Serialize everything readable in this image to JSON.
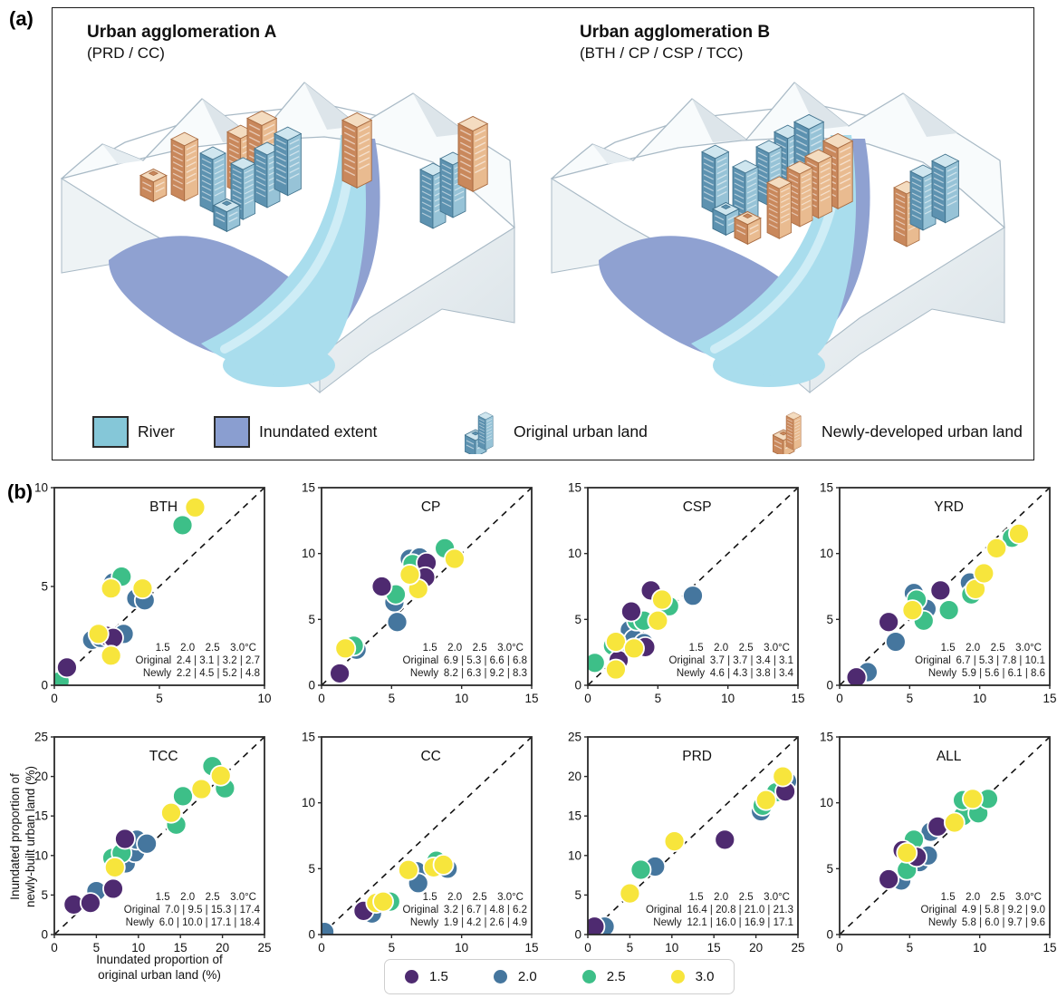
{
  "panel_a": {
    "label": "(a)",
    "scene_a": {
      "title": "Urban agglomeration A",
      "subtitle": "(PRD / CC)"
    },
    "scene_b": {
      "title": "Urban agglomeration B",
      "subtitle": "(BTH / CP / CSP / TCC)"
    },
    "legend": {
      "river": "River",
      "inundated": "Inundated extent",
      "original": "Original urban land",
      "newly": "Newly-developed urban land"
    },
    "colors": {
      "river": "#85c7d8",
      "inundated": "#8a9ed0",
      "original_building": "#7fb3cc",
      "newly_building": "#e0a97e"
    }
  },
  "panel_b": {
    "label": "(b)",
    "xlabel_line1": "Inundated proportion of",
    "xlabel_line2": "original urban land (%)",
    "ylabel_line1": "Inundated proportion of",
    "ylabel_line2": "newly-built urban land (%)",
    "legend": [
      {
        "label": "1.5",
        "color": "#4e2a70"
      },
      {
        "label": "2.0",
        "color": "#45769e"
      },
      {
        "label": "2.5",
        "color": "#3dbf88"
      },
      {
        "label": "3.0",
        "color": "#f7e53c"
      }
    ]
  },
  "chart_data": [
    {
      "type": "scatter",
      "title": "BTH",
      "xlim": [
        0,
        10
      ],
      "ylim": [
        0,
        10
      ],
      "ticks": [
        0,
        5,
        10
      ],
      "stats": {
        "col_header": [
          "1.5",
          "2.0",
          "2.5",
          "3.0°C"
        ],
        "rows": [
          {
            "label": "Original",
            "values": "2.4 | 3.1 | 3.2 | 2.7"
          },
          {
            "label": "Newly",
            "values": "2.2 | 4.5 | 5.2 | 4.8"
          }
        ]
      },
      "series": [
        {
          "name": "2.0",
          "points": [
            [
              1.8,
              2.3
            ],
            [
              2.2,
              2.4
            ],
            [
              3.3,
              2.6
            ],
            [
              2.8,
              5.2
            ],
            [
              3.9,
              4.4
            ],
            [
              4.3,
              4.3
            ]
          ]
        },
        {
          "name": "2.5",
          "points": [
            [
              0.25,
              0.2
            ],
            [
              3.2,
              5.5
            ],
            [
              6.1,
              8.1
            ]
          ]
        },
        {
          "name": "1.5",
          "points": [
            [
              0.6,
              0.9
            ],
            [
              2.5,
              2.5
            ],
            [
              2.8,
              2.4
            ]
          ]
        },
        {
          "name": "3.0",
          "points": [
            [
              2.1,
              2.6
            ],
            [
              2.7,
              1.5
            ],
            [
              2.7,
              4.9
            ],
            [
              4.2,
              4.9
            ],
            [
              6.7,
              9.0
            ]
          ]
        }
      ]
    },
    {
      "type": "scatter",
      "title": "CP",
      "xlim": [
        0,
        15
      ],
      "ylim": [
        0,
        15
      ],
      "ticks": [
        0,
        5,
        10,
        15
      ],
      "stats": {
        "col_header": [
          "1.5",
          "2.0",
          "2.5",
          "3.0°C"
        ],
        "rows": [
          {
            "label": "Original",
            "values": "6.9 | 5.3 | 6.6 | 6.8"
          },
          {
            "label": "Newly",
            "values": "8.2 | 6.3 | 9.2 | 8.3"
          }
        ]
      },
      "series": [
        {
          "name": "2.0",
          "points": [
            [
              2.5,
              2.7
            ],
            [
              5.2,
              6.3
            ],
            [
              5.4,
              4.8
            ],
            [
              6.3,
              9.6
            ],
            [
              7.0,
              9.7
            ]
          ]
        },
        {
          "name": "2.5",
          "points": [
            [
              2.3,
              3.0
            ],
            [
              5.3,
              6.9
            ],
            [
              6.5,
              9.2
            ],
            [
              8.8,
              10.4
            ]
          ]
        },
        {
          "name": "1.5",
          "points": [
            [
              1.3,
              0.9
            ],
            [
              4.3,
              7.5
            ],
            [
              7.5,
              9.3
            ],
            [
              7.4,
              8.2
            ]
          ]
        },
        {
          "name": "3.0",
          "points": [
            [
              1.7,
              2.8
            ],
            [
              6.9,
              7.3
            ],
            [
              6.3,
              8.4
            ],
            [
              9.5,
              9.6
            ]
          ]
        }
      ]
    },
    {
      "type": "scatter",
      "title": "CSP",
      "xlim": [
        0,
        15
      ],
      "ylim": [
        0,
        15
      ],
      "ticks": [
        0,
        5,
        10,
        15
      ],
      "stats": {
        "col_header": [
          "1.5",
          "2.0",
          "2.5",
          "3.0°C"
        ],
        "rows": [
          {
            "label": "Original",
            "values": "3.7 | 3.7 | 3.4 | 3.1"
          },
          {
            "label": "Newly",
            "values": "4.6 | 4.3 | 3.8 | 3.4"
          }
        ]
      },
      "series": [
        {
          "name": "2.0",
          "points": [
            [
              2.6,
              2.8
            ],
            [
              3.0,
              4.2
            ],
            [
              3.3,
              3.5
            ],
            [
              4.0,
              3.2
            ],
            [
              7.5,
              6.8
            ]
          ]
        },
        {
          "name": "2.5",
          "points": [
            [
              0.5,
              1.7
            ],
            [
              1.8,
              3.0
            ],
            [
              3.5,
              4.9
            ],
            [
              4.0,
              4.9
            ],
            [
              5.8,
              6.0
            ]
          ]
        },
        {
          "name": "1.5",
          "points": [
            [
              2.2,
              1.9
            ],
            [
              3.1,
              5.6
            ],
            [
              4.1,
              2.9
            ],
            [
              4.5,
              7.2
            ]
          ]
        },
        {
          "name": "3.0",
          "points": [
            [
              2.0,
              1.2
            ],
            [
              2.0,
              3.3
            ],
            [
              3.3,
              2.8
            ],
            [
              5.0,
              4.9
            ],
            [
              5.3,
              6.5
            ]
          ]
        }
      ]
    },
    {
      "type": "scatter",
      "title": "YRD",
      "xlim": [
        0,
        15
      ],
      "ylim": [
        0,
        15
      ],
      "ticks": [
        0,
        5,
        10,
        15
      ],
      "stats": {
        "col_header": [
          "1.5",
          "2.0",
          "2.5",
          "3.0°C"
        ],
        "rows": [
          {
            "label": "Original",
            "values": "6.7 | 5.3 | 7.8 | 10.1"
          },
          {
            "label": "Newly",
            "values": "5.9 | 5.6 | 6.1 | 8.6"
          }
        ]
      },
      "series": [
        {
          "name": "2.0",
          "points": [
            [
              2.0,
              1.0
            ],
            [
              4.0,
              3.3
            ],
            [
              5.3,
              7.0
            ],
            [
              6.2,
              5.8
            ],
            [
              9.3,
              7.8
            ]
          ]
        },
        {
          "name": "2.5",
          "points": [
            [
              5.5,
              6.5
            ],
            [
              6.0,
              4.9
            ],
            [
              7.8,
              5.7
            ],
            [
              9.4,
              6.9
            ],
            [
              12.3,
              11.2
            ]
          ]
        },
        {
          "name": "1.5",
          "points": [
            [
              1.2,
              0.6
            ],
            [
              3.5,
              4.8
            ],
            [
              7.2,
              7.2
            ]
          ]
        },
        {
          "name": "3.0",
          "points": [
            [
              5.2,
              5.7
            ],
            [
              9.7,
              7.3
            ],
            [
              10.3,
              8.5
            ],
            [
              11.2,
              10.4
            ],
            [
              12.8,
              11.5
            ]
          ]
        }
      ]
    },
    {
      "type": "scatter",
      "title": "TCC",
      "xlim": [
        0,
        25
      ],
      "ylim": [
        0,
        25
      ],
      "ticks": [
        0,
        5,
        10,
        15,
        20,
        25
      ],
      "stats": {
        "col_header": [
          "1.5",
          "2.0",
          "2.5",
          "3.0°C"
        ],
        "rows": [
          {
            "label": "Original",
            "values": "7.0 |  9.5  | 15.3 | 17.4"
          },
          {
            "label": "Newly",
            "values": "6.0 | 10.0 | 17.1 | 18.4"
          }
        ]
      },
      "series": [
        {
          "name": "2.0",
          "points": [
            [
              5.0,
              5.5
            ],
            [
              8.5,
              9.0
            ],
            [
              9.6,
              10.4
            ],
            [
              9.8,
              12.0
            ],
            [
              11.0,
              11.5
            ]
          ]
        },
        {
          "name": "2.5",
          "points": [
            [
              6.9,
              9.7
            ],
            [
              8.0,
              10.3
            ],
            [
              14.5,
              13.9
            ],
            [
              15.3,
              17.5
            ],
            [
              18.8,
              21.3
            ],
            [
              20.3,
              18.5
            ]
          ]
        },
        {
          "name": "1.5",
          "points": [
            [
              2.3,
              3.8
            ],
            [
              4.3,
              4.0
            ],
            [
              7.0,
              5.8
            ],
            [
              8.4,
              12.1
            ]
          ]
        },
        {
          "name": "3.0",
          "points": [
            [
              7.2,
              8.5
            ],
            [
              13.9,
              15.4
            ],
            [
              17.5,
              18.4
            ],
            [
              19.8,
              20.1
            ]
          ]
        }
      ]
    },
    {
      "type": "scatter",
      "title": "CC",
      "xlim": [
        0,
        15
      ],
      "ylim": [
        0,
        15
      ],
      "ticks": [
        0,
        5,
        10,
        15
      ],
      "stats": {
        "col_header": [
          "1.5",
          "2.0",
          "2.5",
          "3.0°C"
        ],
        "rows": [
          {
            "label": "Original",
            "values": "3.2 | 6.7 | 4.8 | 6.2"
          },
          {
            "label": "Newly",
            "values": "1.9 | 4.2 | 2.6 | 4.9"
          }
        ]
      },
      "series": [
        {
          "name": "2.0",
          "points": [
            [
              0.2,
              0.2
            ],
            [
              3.6,
              1.6
            ],
            [
              6.8,
              4.8
            ],
            [
              6.9,
              3.9
            ],
            [
              9.0,
              5.0
            ]
          ]
        },
        {
          "name": "2.5",
          "points": [
            [
              4.9,
              2.5
            ],
            [
              8.2,
              5.6
            ]
          ]
        },
        {
          "name": "1.5",
          "points": [
            [
              3.0,
              1.8
            ]
          ]
        },
        {
          "name": "3.0",
          "points": [
            [
              3.9,
              2.4
            ],
            [
              4.4,
              2.5
            ],
            [
              6.2,
              4.9
            ],
            [
              8.0,
              5.1
            ],
            [
              8.7,
              5.3
            ]
          ]
        }
      ]
    },
    {
      "type": "scatter",
      "title": "PRD",
      "xlim": [
        0,
        25
      ],
      "ylim": [
        0,
        25
      ],
      "ticks": [
        0,
        5,
        10,
        15,
        20,
        25
      ],
      "stats": {
        "col_header": [
          "1.5",
          "2.0",
          "2.5",
          "3.0°C"
        ],
        "rows": [
          {
            "label": "Original",
            "values": "16.4 | 20.8 | 21.0 | 21.3"
          },
          {
            "label": "Newly",
            "values": "12.1 | 16.0 | 16.9 | 17.1"
          }
        ]
      },
      "series": [
        {
          "name": "2.0",
          "points": [
            [
              2.0,
              1.0
            ],
            [
              8.0,
              8.6
            ],
            [
              20.6,
              15.6
            ],
            [
              23.7,
              19.4
            ]
          ]
        },
        {
          "name": "2.5",
          "points": [
            [
              6.3,
              8.2
            ],
            [
              20.8,
              16.3
            ],
            [
              22.4,
              18.0
            ]
          ]
        },
        {
          "name": "1.5",
          "points": [
            [
              0.8,
              1.0
            ],
            [
              16.3,
              12.0
            ],
            [
              23.5,
              18.1
            ]
          ]
        },
        {
          "name": "3.0",
          "points": [
            [
              5.0,
              5.2
            ],
            [
              10.3,
              11.8
            ],
            [
              21.2,
              17.0
            ],
            [
              23.2,
              20.0
            ]
          ]
        }
      ]
    },
    {
      "type": "scatter",
      "title": "ALL",
      "xlim": [
        0,
        15
      ],
      "ylim": [
        0,
        15
      ],
      "ticks": [
        0,
        5,
        10,
        15
      ],
      "stats": {
        "col_header": [
          "1.5",
          "2.0",
          "2.5",
          "3.0°C"
        ],
        "rows": [
          {
            "label": "Original",
            "values": "4.9 | 5.8 | 9.2 | 9.0"
          },
          {
            "label": "Newly",
            "values": "5.8 | 6.0 | 9.7 | 9.6"
          }
        ]
      },
      "series": [
        {
          "name": "2.0",
          "points": [
            [
              4.4,
              4.1
            ],
            [
              5.7,
              5.5
            ],
            [
              6.3,
              6.0
            ],
            [
              6.5,
              7.8
            ]
          ]
        },
        {
          "name": "2.5",
          "points": [
            [
              4.8,
              4.9
            ],
            [
              5.3,
              7.2
            ],
            [
              8.8,
              9.0
            ],
            [
              8.8,
              10.2
            ],
            [
              9.9,
              9.2
            ],
            [
              10.6,
              10.3
            ]
          ]
        },
        {
          "name": "1.5",
          "points": [
            [
              3.5,
              4.2
            ],
            [
              4.5,
              6.4
            ],
            [
              5.5,
              5.9
            ],
            [
              7.0,
              8.2
            ]
          ]
        },
        {
          "name": "3.0",
          "points": [
            [
              4.8,
              6.2
            ],
            [
              8.2,
              8.5
            ],
            [
              9.5,
              10.3
            ]
          ]
        }
      ]
    }
  ]
}
